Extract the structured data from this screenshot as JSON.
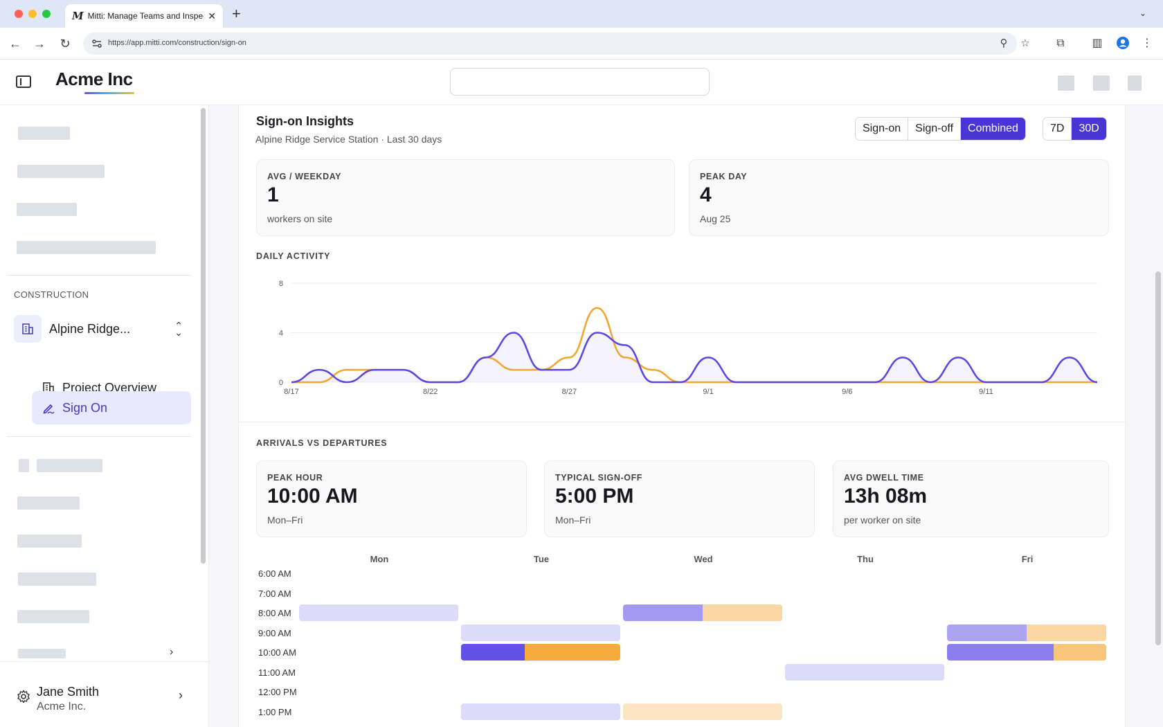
{
  "browser": {
    "tab_logo": "M",
    "tab_title": "Mitti: Manage Teams and Inspect...",
    "url": "https://app.mitti.com/construction/sign-on"
  },
  "header": {
    "brand": "Acme Inc",
    "brand_gradient": [
      "#6b4eff",
      "#3cb3ff",
      "#f5c400"
    ]
  },
  "sidebar": {
    "section_label": "CONSTRUCTION",
    "project_name": "Alpine Ridge...",
    "items": [
      {
        "label": "Project Overview",
        "icon": "building-icon",
        "active": false
      },
      {
        "label": "Sign On",
        "icon": "signature-icon",
        "active": true
      }
    ],
    "user": {
      "name": "Jane Smith",
      "org": "Acme Inc."
    }
  },
  "insights": {
    "title": "Sign-on Insights",
    "subtitle": "Alpine Ridge Service Station · Last 30 days",
    "mode_options": [
      "Sign-on",
      "Sign-off",
      "Combined"
    ],
    "mode_selected": "Combined",
    "range_options": [
      "7D",
      "30D"
    ],
    "range_selected": "30D",
    "accent": "#4935d6",
    "stats": [
      {
        "label": "AVG / WEEKDAY",
        "value": "1",
        "note": "workers on site"
      },
      {
        "label": "PEAK DAY",
        "value": "4",
        "note": "Aug 25"
      }
    ],
    "daily_activity_label": "DAILY ACTIVITY",
    "arrivals_label": "ARRIVALS VS DEPARTURES",
    "arrival_stats": [
      {
        "label": "PEAK HOUR",
        "value": "10:00 AM",
        "note": "Mon–Fri"
      },
      {
        "label": "TYPICAL SIGN-OFF",
        "value": "5:00 PM",
        "note": "Mon–Fri"
      },
      {
        "label": "AVG DWELL TIME",
        "value": "13h 08m",
        "note": "per worker on site"
      }
    ]
  },
  "chart_data": {
    "type": "line",
    "title": "DAILY ACTIVITY",
    "x": [
      "8/17",
      "8/18",
      "8/19",
      "8/20",
      "8/21",
      "8/22",
      "8/23",
      "8/24",
      "8/25",
      "8/26",
      "8/27",
      "8/28",
      "8/29",
      "8/30",
      "8/31",
      "9/1",
      "9/2",
      "9/3",
      "9/4",
      "9/5",
      "9/6",
      "9/7",
      "9/8",
      "9/9",
      "9/10",
      "9/11",
      "9/12",
      "9/13",
      "9/14",
      "9/15"
    ],
    "x_tick_labels": [
      "8/17",
      "8/22",
      "8/27",
      "9/1",
      "9/6",
      "9/11"
    ],
    "ylim": [
      0,
      8
    ],
    "y_ticks": [
      0,
      4,
      8
    ],
    "grid": true,
    "series": [
      {
        "color": "#5b47e6",
        "values": [
          0,
          1,
          0,
          1,
          1,
          0,
          0,
          2,
          4,
          1,
          1,
          4,
          3,
          0,
          0,
          2,
          0,
          0,
          0,
          0,
          0,
          0,
          2,
          0,
          2,
          0,
          0,
          0,
          2,
          0
        ]
      },
      {
        "color": "#f3a732",
        "values": [
          0,
          0,
          1,
          1,
          1,
          0,
          0,
          2,
          1,
          1,
          2,
          6,
          2,
          1,
          0,
          0,
          0,
          0,
          0,
          0,
          0,
          0,
          0,
          0,
          0,
          0,
          0,
          0,
          0,
          0
        ]
      }
    ]
  },
  "heatmap": {
    "days": [
      "Mon",
      "Tue",
      "Wed",
      "Thu",
      "Fri"
    ],
    "times": [
      "6:00 AM",
      "7:00 AM",
      "8:00 AM",
      "9:00 AM",
      "10:00 AM",
      "11:00 AM",
      "12:00 PM",
      "1:00 PM"
    ],
    "arrival_color": "#5b47e6",
    "departure_color": "#f3a732",
    "cells": [
      {
        "day": 0,
        "time": 2,
        "arrivals": 0.2,
        "departures": 0,
        "arrival_share": 1
      },
      {
        "day": 2,
        "time": 2,
        "arrivals": 0.55,
        "departures": 0.45,
        "arrival_share": 0.5
      },
      {
        "day": 1,
        "time": 3,
        "arrivals": 0.2,
        "departures": 0,
        "arrival_share": 1
      },
      {
        "day": 4,
        "time": 3,
        "arrivals": 0.5,
        "departures": 0.45,
        "arrival_share": 0.5
      },
      {
        "day": 1,
        "time": 4,
        "arrivals": 0.95,
        "departures": 0.95,
        "arrival_share": 0.4
      },
      {
        "day": 4,
        "time": 4,
        "arrivals": 0.7,
        "departures": 0.65,
        "arrival_share": 0.67
      },
      {
        "day": 3,
        "time": 5,
        "arrivals": 0.2,
        "departures": 0,
        "arrival_share": 1
      },
      {
        "day": 1,
        "time": 7,
        "arrivals": 0.2,
        "departures": 0,
        "arrival_share": 1
      },
      {
        "day": 2,
        "time": 7,
        "arrivals": 0,
        "departures": 0.3,
        "arrival_share": 0
      }
    ]
  }
}
